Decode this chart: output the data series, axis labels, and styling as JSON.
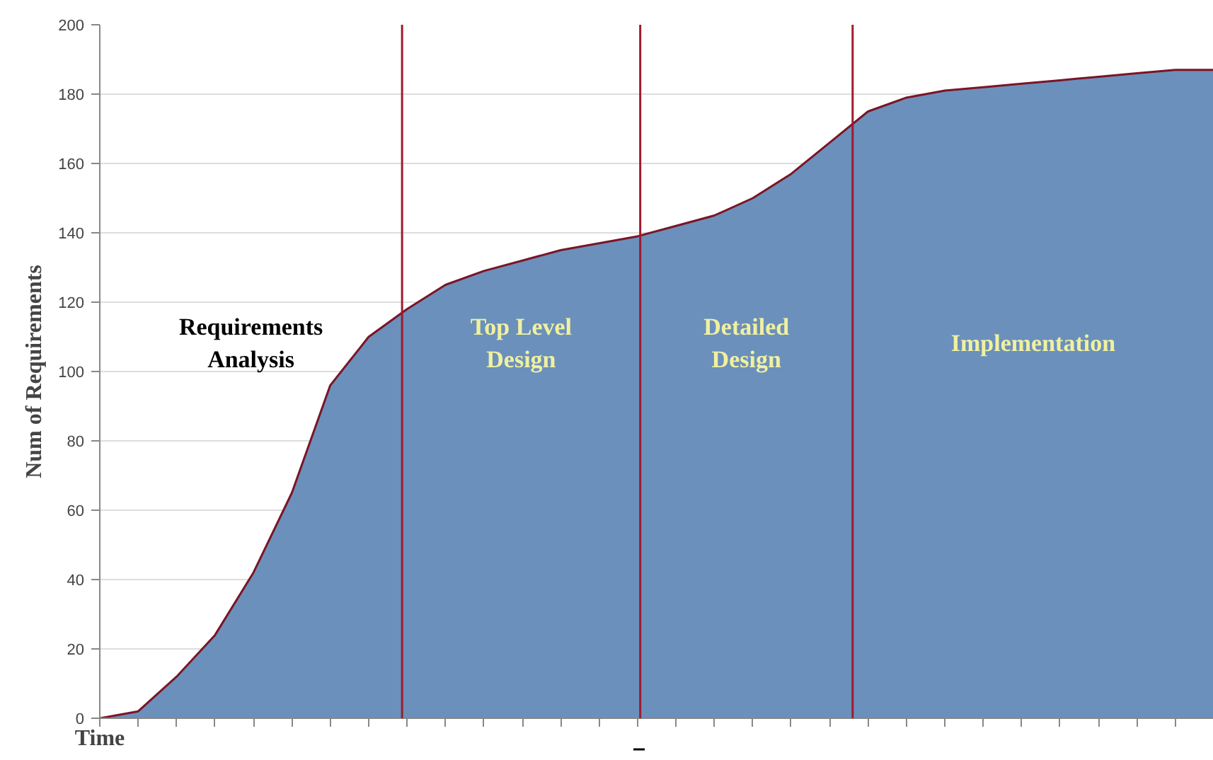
{
  "chart_data": {
    "type": "area",
    "ylabel": "Num of Requirements",
    "xlabel": "Time",
    "categories": [
      null,
      null,
      null,
      null,
      null,
      null,
      null,
      null,
      null,
      null,
      null,
      null,
      null,
      null,
      null,
      null,
      null,
      null,
      null,
      null,
      null,
      null,
      null,
      null,
      null,
      null,
      null,
      null,
      null,
      null
    ],
    "series": [
      {
        "color": "#6b90bb",
        "values": [
          0,
          2,
          12,
          24,
          42,
          65,
          96,
          110,
          118,
          125,
          129,
          132,
          135,
          137,
          139,
          142,
          145,
          150,
          157,
          166,
          175,
          179,
          181,
          182,
          183,
          184,
          185,
          186,
          187,
          187
        ]
      }
    ],
    "ylim": [
      0,
      200
    ],
    "yticks": [
      0,
      20,
      40,
      60,
      80,
      100,
      120,
      140,
      160,
      180,
      200
    ],
    "grid": "y",
    "annotations": [
      "Requirements\nAnalysis",
      "Top Level\nDesign",
      "Detailed\nDesign",
      "Implementation"
    ]
  }
}
